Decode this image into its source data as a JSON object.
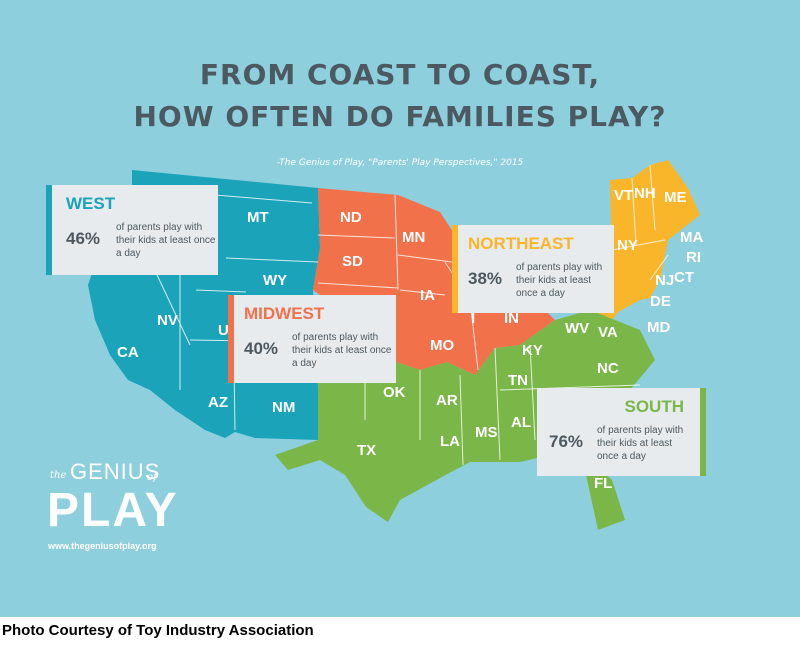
{
  "title_line1": "FROM COAST TO COAST,",
  "title_line2": "HOW OFTEN DO FAMILIES PLAY?",
  "source": "-The Genius of Play, \"Parents' Play Perspectives,\" 2015",
  "colors": {
    "background": "#8ecfdd",
    "west": "#1aa3b9",
    "midwest": "#f1714b",
    "northeast": "#f9b62a",
    "south": "#7ab648",
    "title": "#4c5961"
  },
  "regions": [
    {
      "name": "WEST",
      "percent": "46%",
      "description": "of parents play with their kids at least once a day",
      "color": "#1aa3b9"
    },
    {
      "name": "MIDWEST",
      "percent": "40%",
      "description": "of parents play with their kids at least once a day",
      "color": "#f1714b"
    },
    {
      "name": "NORTHEAST",
      "percent": "38%",
      "description": "of parents play with their kids at least once a day",
      "color": "#f9b62a"
    },
    {
      "name": "SOUTH",
      "percent": "76%",
      "description": "of parents play with their kids at least once a day",
      "color": "#7ab648"
    }
  ],
  "states": {
    "west": [
      "MT",
      "WY",
      "NV",
      "CA",
      "U",
      "AZ",
      "NM"
    ],
    "midwest": [
      "ND",
      "SD",
      "MN",
      "IA",
      "MO",
      "I",
      "IN"
    ],
    "northeast": [
      "VT",
      "NH",
      "ME",
      "MA",
      "NY",
      "RI",
      "NJ",
      "CT",
      "DE",
      "MD"
    ],
    "south": [
      "WV",
      "VA",
      "KY",
      "NC",
      "TN",
      "OK",
      "AR",
      "TX",
      "LA",
      "MS",
      "AL",
      "FL"
    ]
  },
  "logo": {
    "the": "the",
    "genius": "GENIUS",
    "of": "of",
    "play": "PLAY",
    "url": "www.thegeniusofplay.org"
  },
  "caption": "Photo Courtesy of Toy Industry Association"
}
